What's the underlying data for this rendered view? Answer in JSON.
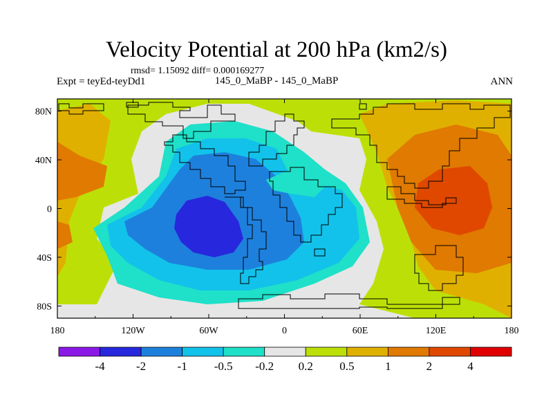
{
  "chart_data": {
    "type": "heatmap",
    "title": "Velocity Potential at 200 hPa (km2/s)",
    "subtitle_stats": "rmsd= 1.15092 diff= 0.000169277",
    "left_label": "Expt = teyEd-teyDd1",
    "center_label": "145_0_MaBP - 145_0_MaBP",
    "right_label": "ANN",
    "x_axis": {
      "range": [
        -180,
        180
      ],
      "ticks": [
        {
          "value": -180,
          "label": "180"
        },
        {
          "value": -120,
          "label": "120W"
        },
        {
          "value": -60,
          "label": "60W"
        },
        {
          "value": 0,
          "label": "0"
        },
        {
          "value": 60,
          "label": "60E"
        },
        {
          "value": 120,
          "label": "120E"
        },
        {
          "value": 180,
          "label": "180"
        }
      ]
    },
    "y_axis": {
      "range": [
        -90,
        90
      ],
      "ticks": [
        {
          "value": 80,
          "label": "80N"
        },
        {
          "value": 40,
          "label": "40N"
        },
        {
          "value": 0,
          "label": "0"
        },
        {
          "value": -40,
          "label": "40S"
        },
        {
          "value": -80,
          "label": "80S"
        }
      ]
    },
    "colorbar": {
      "levels": [
        "-4",
        "-2",
        "-1",
        "-0.5",
        "-0.2",
        "0.2",
        "0.5",
        "1",
        "2",
        "4"
      ],
      "colors": [
        "#8a19e6",
        "#2727dd",
        "#1e80dd",
        "#12c2ea",
        "#1fe0c8",
        "#e6e6e6",
        "#bce007",
        "#e0b000",
        "#e07a00",
        "#e04800",
        "#e00000"
      ]
    },
    "field_centers": [
      {
        "name": "min",
        "lon": -60,
        "lat": -15,
        "value": -4.3
      },
      {
        "name": "max",
        "lon": 135,
        "lat": 0,
        "value": 2.8
      }
    ]
  }
}
